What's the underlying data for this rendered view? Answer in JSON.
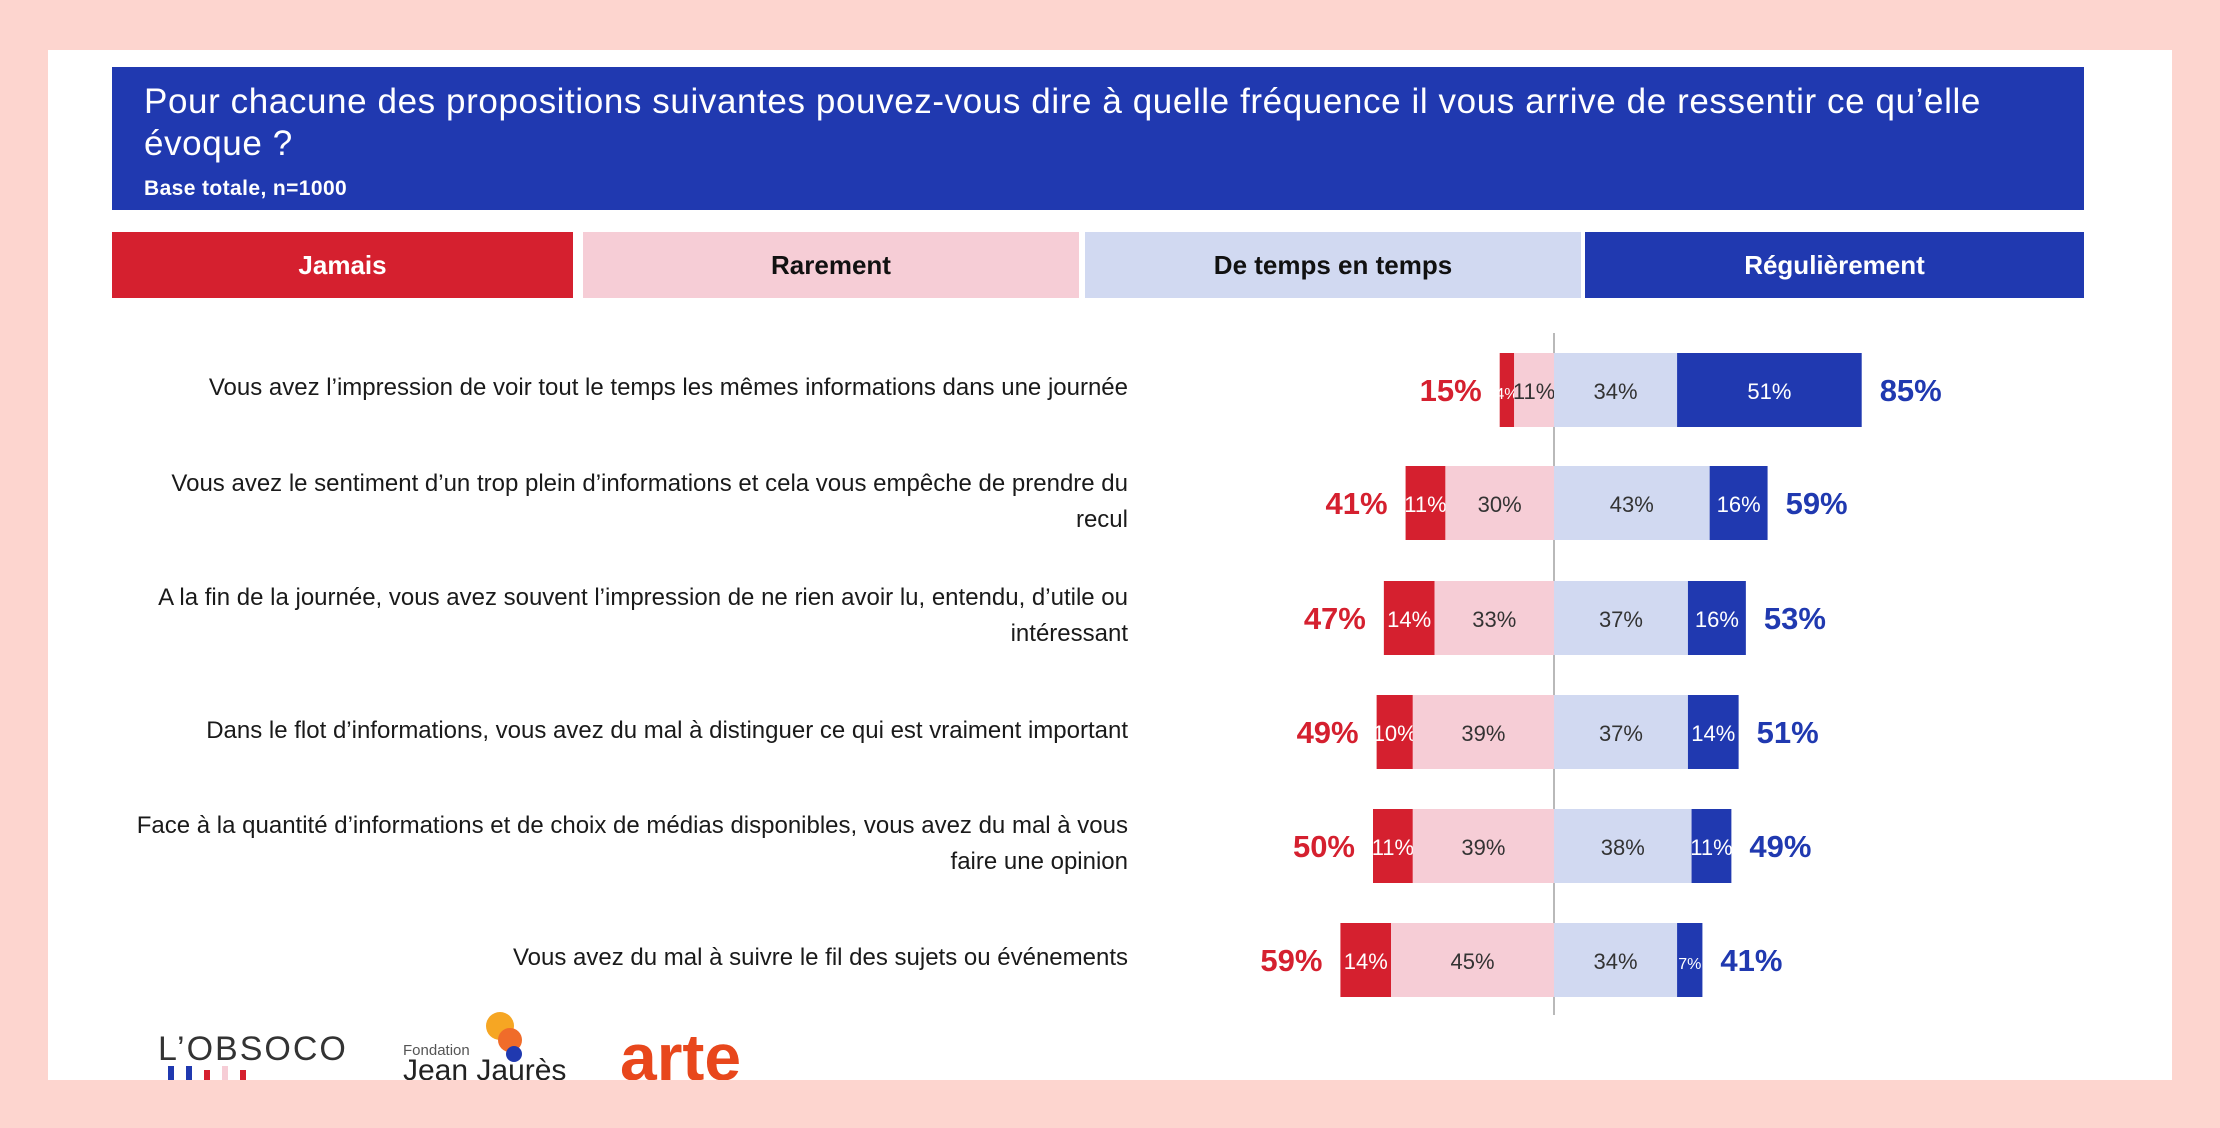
{
  "title": "Pour chacune des propositions suivantes pouvez-vous dire à quelle fréquence il vous arrive de ressentir ce qu’elle évoque ?",
  "subtitle": "Base totale, n=1000",
  "colors": {
    "jamais": "#d5202f",
    "rarement": "#f6cdd6",
    "de_temps": "#d1d9f1",
    "regulierement": "#2039b0",
    "header": "#2039b0"
  },
  "legend": [
    {
      "key": "jamais",
      "label": "Jamais"
    },
    {
      "key": "rarement",
      "label": "Rarement"
    },
    {
      "key": "de_temps",
      "label": "De temps en temps"
    },
    {
      "key": "regulierement",
      "label": "Régulièrement"
    }
  ],
  "chart_data": {
    "type": "bar",
    "subtype": "diverging-stacked",
    "categories": [
      "Vous avez l’impression de voir tout le temps les mêmes informations dans une journée",
      "Vous avez le sentiment d’un trop plein d’informations et cela vous empêche de prendre du recul",
      "A la fin de la journée, vous avez souvent l’impression de ne rien avoir lu, entendu, d’utile ou intéressant",
      "Dans le flot d’informations, vous avez du mal à distinguer ce qui est vraiment important",
      "Face à la quantité d’informations et de choix de médias disponibles, vous avez du mal à vous faire une opinion",
      "Vous avez du mal à suivre le fil des sujets ou événements"
    ],
    "series": [
      {
        "name": "Jamais",
        "values": [
          4,
          11,
          14,
          10,
          11,
          14
        ],
        "labels": [
          "4%",
          "11%",
          "14%",
          "10%",
          "11%",
          "14%"
        ]
      },
      {
        "name": "Rarement",
        "values": [
          11,
          30,
          33,
          39,
          39,
          45
        ],
        "labels": [
          "11%",
          "30%",
          "33%",
          "39%",
          "39%",
          "45%"
        ]
      },
      {
        "name": "De temps en temps",
        "values": [
          34,
          43,
          37,
          37,
          38,
          34
        ],
        "labels": [
          "34%",
          "43%",
          "37%",
          "37%",
          "38%",
          "34%"
        ]
      },
      {
        "name": "Régulièrement",
        "values": [
          51,
          16,
          16,
          14,
          11,
          7
        ],
        "labels": [
          "51%",
          "16%",
          "16%",
          "14%",
          "11%",
          "7%"
        ]
      }
    ],
    "totals_negative": [
      "15%",
      "41%",
      "47%",
      "49%",
      "50%",
      "59%"
    ],
    "totals_positive": [
      "85%",
      "59%",
      "53%",
      "51%",
      "49%",
      "41%"
    ]
  },
  "logos": {
    "obsoco": "L’OBSOCO",
    "fondation_small": "Fondation",
    "fondation_name": "Jean Jaurès",
    "arte": "arte"
  }
}
